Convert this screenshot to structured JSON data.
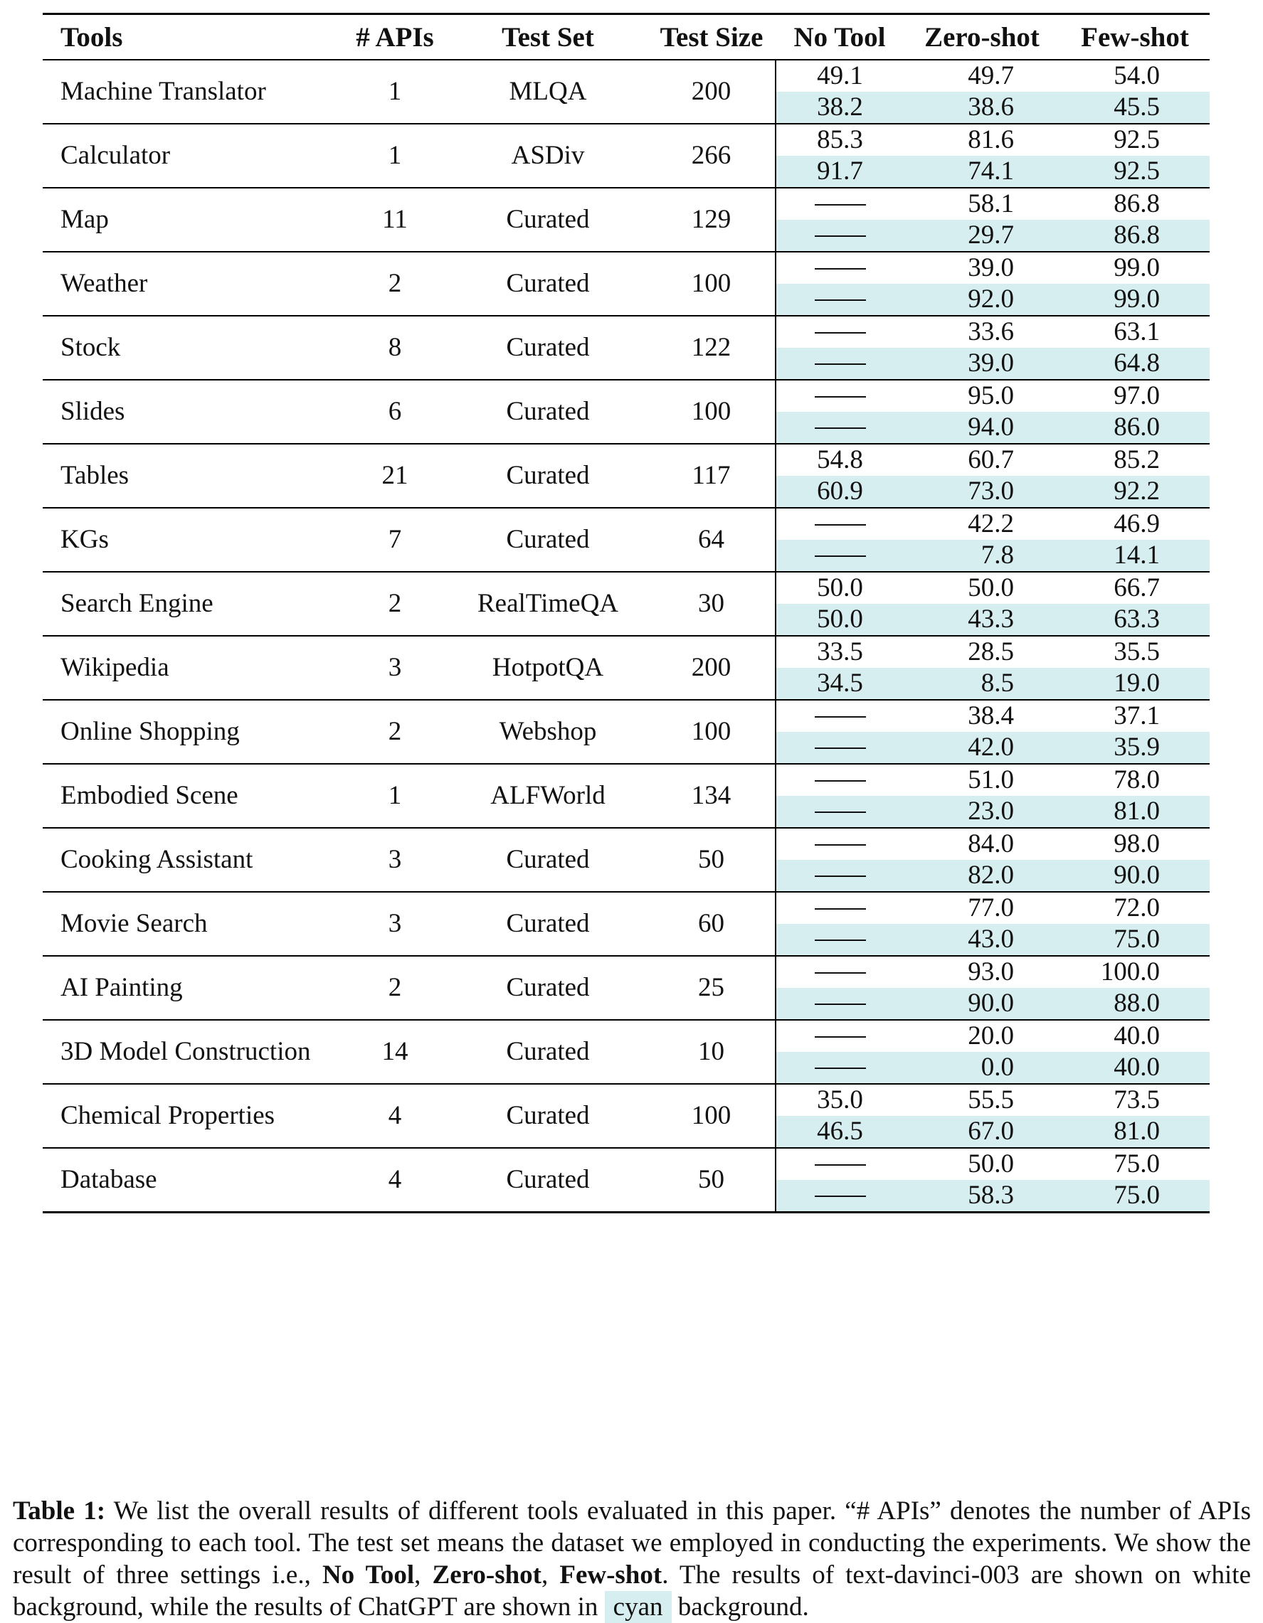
{
  "table": {
    "headers": [
      "Tools",
      "# APIs",
      "Test Set",
      "Test Size",
      "No Tool",
      "Zero-shot",
      "Few-shot"
    ],
    "rows": [
      {
        "tool": "Machine Translator",
        "apis": "1",
        "test_set": "MLQA",
        "test_size": "200",
        "davinci": {
          "no_tool": "49.1",
          "zero_shot": "49.7",
          "few_shot": "54.0"
        },
        "chatgpt": {
          "no_tool": "38.2",
          "zero_shot": "38.6",
          "few_shot": "45.5"
        }
      },
      {
        "tool": "Calculator",
        "apis": "1",
        "test_set": "ASDiv",
        "test_size": "266",
        "davinci": {
          "no_tool": "85.3",
          "zero_shot": "81.6",
          "few_shot": "92.5"
        },
        "chatgpt": {
          "no_tool": "91.7",
          "zero_shot": "74.1",
          "few_shot": "92.5"
        }
      },
      {
        "tool": "Map",
        "apis": "11",
        "test_set": "Curated",
        "test_size": "129",
        "davinci": {
          "no_tool": "—",
          "zero_shot": "58.1",
          "few_shot": "86.8"
        },
        "chatgpt": {
          "no_tool": "—",
          "zero_shot": "29.7",
          "few_shot": "86.8"
        }
      },
      {
        "tool": "Weather",
        "apis": "2",
        "test_set": "Curated",
        "test_size": "100",
        "davinci": {
          "no_tool": "—",
          "zero_shot": "39.0",
          "few_shot": "99.0"
        },
        "chatgpt": {
          "no_tool": "—",
          "zero_shot": "92.0",
          "few_shot": "99.0"
        }
      },
      {
        "tool": "Stock",
        "apis": "8",
        "test_set": "Curated",
        "test_size": "122",
        "davinci": {
          "no_tool": "—",
          "zero_shot": "33.6",
          "few_shot": "63.1"
        },
        "chatgpt": {
          "no_tool": "—",
          "zero_shot": "39.0",
          "few_shot": "64.8"
        }
      },
      {
        "tool": "Slides",
        "apis": "6",
        "test_set": "Curated",
        "test_size": "100",
        "davinci": {
          "no_tool": "—",
          "zero_shot": "95.0",
          "few_shot": "97.0"
        },
        "chatgpt": {
          "no_tool": "—",
          "zero_shot": "94.0",
          "few_shot": "86.0"
        }
      },
      {
        "tool": "Tables",
        "apis": "21",
        "test_set": "Curated",
        "test_size": "117",
        "davinci": {
          "no_tool": "54.8",
          "zero_shot": "60.7",
          "few_shot": "85.2"
        },
        "chatgpt": {
          "no_tool": "60.9",
          "zero_shot": "73.0",
          "few_shot": "92.2"
        }
      },
      {
        "tool": "KGs",
        "apis": "7",
        "test_set": "Curated",
        "test_size": "64",
        "davinci": {
          "no_tool": "—",
          "zero_shot": "42.2",
          "few_shot": "46.9"
        },
        "chatgpt": {
          "no_tool": "—",
          "zero_shot": "7.8",
          "few_shot": "14.1"
        }
      },
      {
        "tool": "Search Engine",
        "apis": "2",
        "test_set": "RealTimeQA",
        "test_size": "30",
        "davinci": {
          "no_tool": "50.0",
          "zero_shot": "50.0",
          "few_shot": "66.7"
        },
        "chatgpt": {
          "no_tool": "50.0",
          "zero_shot": "43.3",
          "few_shot": "63.3"
        }
      },
      {
        "tool": "Wikipedia",
        "apis": "3",
        "test_set": "HotpotQA",
        "test_size": "200",
        "davinci": {
          "no_tool": "33.5",
          "zero_shot": "28.5",
          "few_shot": "35.5"
        },
        "chatgpt": {
          "no_tool": "34.5",
          "zero_shot": "8.5",
          "few_shot": "19.0"
        }
      },
      {
        "tool": "Online Shopping",
        "apis": "2",
        "test_set": "Webshop",
        "test_size": "100",
        "davinci": {
          "no_tool": "—",
          "zero_shot": "38.4",
          "few_shot": "37.1"
        },
        "chatgpt": {
          "no_tool": "—",
          "zero_shot": "42.0",
          "few_shot": "35.9"
        }
      },
      {
        "tool": "Embodied Scene",
        "apis": "1",
        "test_set": "ALFWorld",
        "test_size": "134",
        "davinci": {
          "no_tool": "—",
          "zero_shot": "51.0",
          "few_shot": "78.0"
        },
        "chatgpt": {
          "no_tool": "—",
          "zero_shot": "23.0",
          "few_shot": "81.0"
        }
      },
      {
        "tool": "Cooking Assistant",
        "apis": "3",
        "test_set": "Curated",
        "test_size": "50",
        "davinci": {
          "no_tool": "—",
          "zero_shot": "84.0",
          "few_shot": "98.0"
        },
        "chatgpt": {
          "no_tool": "—",
          "zero_shot": "82.0",
          "few_shot": "90.0"
        }
      },
      {
        "tool": "Movie Search",
        "apis": "3",
        "test_set": "Curated",
        "test_size": "60",
        "davinci": {
          "no_tool": "—",
          "zero_shot": "77.0",
          "few_shot": "72.0"
        },
        "chatgpt": {
          "no_tool": "—",
          "zero_shot": "43.0",
          "few_shot": "75.0"
        }
      },
      {
        "tool": "AI Painting",
        "apis": "2",
        "test_set": "Curated",
        "test_size": "25",
        "davinci": {
          "no_tool": "—",
          "zero_shot": "93.0",
          "few_shot": "100.0"
        },
        "chatgpt": {
          "no_tool": "—",
          "zero_shot": "90.0",
          "few_shot": "88.0"
        }
      },
      {
        "tool": "3D Model Construction",
        "apis": "14",
        "test_set": "Curated",
        "test_size": "10",
        "davinci": {
          "no_tool": "—",
          "zero_shot": "20.0",
          "few_shot": "40.0"
        },
        "chatgpt": {
          "no_tool": "—",
          "zero_shot": "0.0",
          "few_shot": "40.0"
        }
      },
      {
        "tool": "Chemical Properties",
        "apis": "4",
        "test_set": "Curated",
        "test_size": "100",
        "davinci": {
          "no_tool": "35.0",
          "zero_shot": "55.5",
          "few_shot": "73.5"
        },
        "chatgpt": {
          "no_tool": "46.5",
          "zero_shot": "67.0",
          "few_shot": "81.0"
        }
      },
      {
        "tool": "Database",
        "apis": "4",
        "test_set": "Curated",
        "test_size": "50",
        "davinci": {
          "no_tool": "—",
          "zero_shot": "50.0",
          "few_shot": "75.0"
        },
        "chatgpt": {
          "no_tool": "—",
          "zero_shot": "58.3",
          "few_shot": "75.0"
        }
      }
    ]
  },
  "caption": {
    "label": "Table 1:",
    "text1": " We list the overall results of different tools evaluated in this paper. “# APIs” denotes the number of APIs corresponding to each tool. The test set means the dataset we employed in conducting the experiments. We show the result of three settings i.e., ",
    "bold1": "No Tool",
    "sep1": ", ",
    "bold2": "Zero-shot",
    "sep2": ", ",
    "bold3": "Few-shot",
    "text2": ". The results of text-davinci-003 are shown on white background, while the results of ChatGPT are shown in ",
    "cyan_word": "cyan",
    "text3": " background."
  },
  "colors": {
    "chatgpt_background": "#d6eef0",
    "rule": "#000000"
  }
}
